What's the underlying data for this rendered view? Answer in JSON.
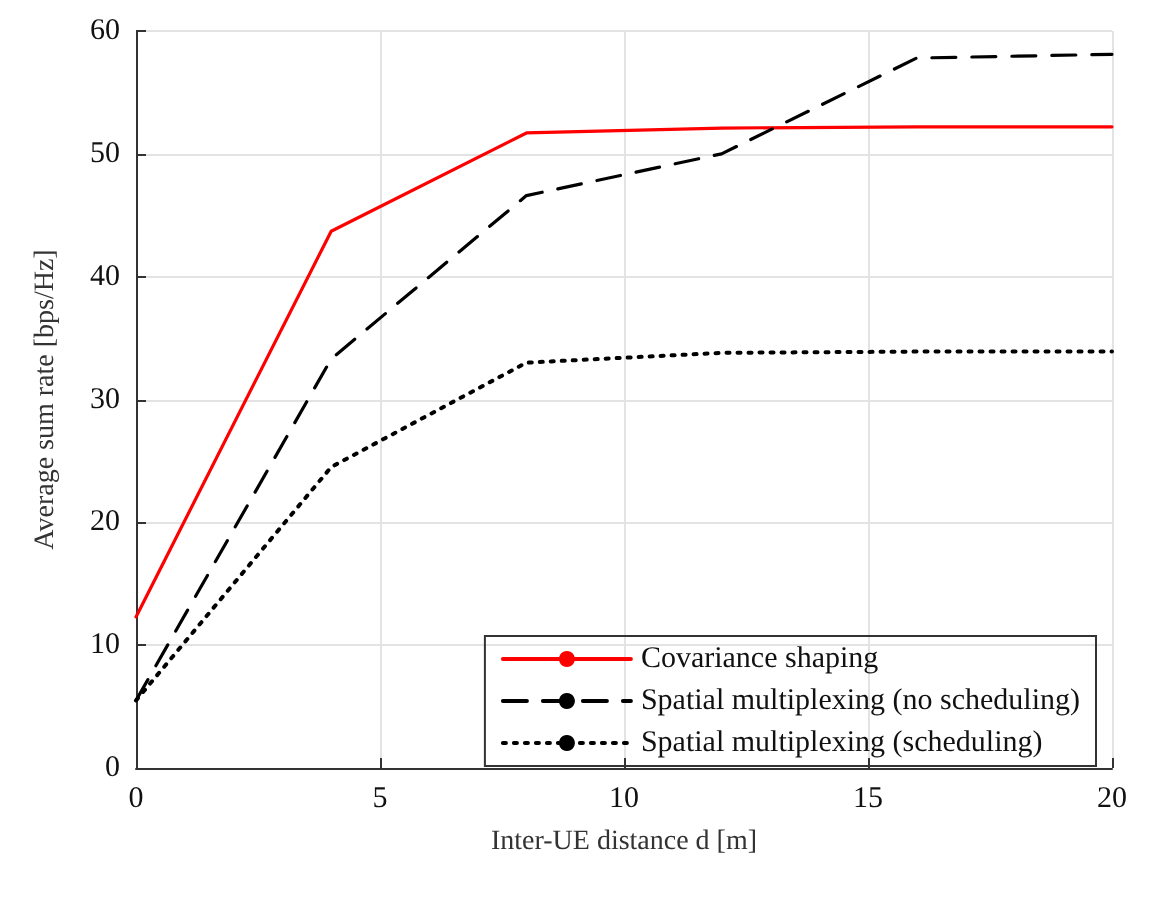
{
  "chart_data": {
    "type": "line",
    "xlabel": "Inter-UE distance d [m]",
    "ylabel": "Average sum rate [bps/Hz]",
    "x": [
      0,
      4,
      8,
      12,
      16,
      20
    ],
    "xlim": [
      0,
      20
    ],
    "xticks": [
      0,
      5,
      10,
      15,
      20
    ],
    "ylim": [
      0,
      60
    ],
    "yticks": [
      0,
      10,
      20,
      30,
      40,
      50,
      60
    ],
    "grid": true,
    "legend": "bottom right",
    "marker": "none",
    "series": [
      {
        "name": "Covariance shaping",
        "color": "#ff0000",
        "line_style": "solid",
        "values": [
          12.3,
          43.7,
          51.7,
          52.1,
          52.2,
          52.2
        ]
      },
      {
        "name": "Spatial multiplexing (no scheduling)",
        "color": "#000000",
        "line_style": "dashed",
        "values": [
          5.5,
          33.3,
          46.6,
          50,
          57.8,
          58.1
        ]
      },
      {
        "name": "Spatial multiplexing (scheduling)",
        "color": "#000000",
        "line_style": "dotted",
        "values": [
          5.5,
          24.5,
          33,
          33.8,
          33.9,
          33.9
        ]
      }
    ]
  }
}
